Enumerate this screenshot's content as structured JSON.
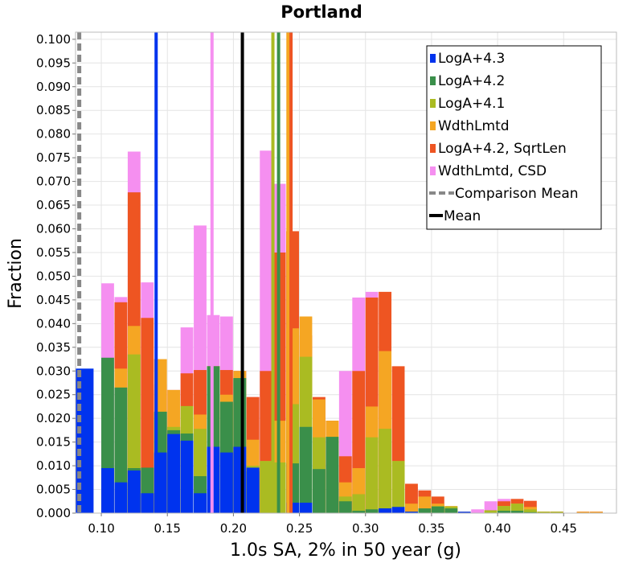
{
  "chart_data": {
    "type": "bar",
    "stacked": true,
    "title": "Portland",
    "xlabel": "1.0s SA, 2% in 50 year (g)",
    "ylabel": "Fraction",
    "xlim": [
      0.0805,
      0.49
    ],
    "ylim": [
      0,
      0.1015
    ],
    "bin_width": 0.01,
    "x_ticks": [
      "0.10",
      "0.15",
      "0.20",
      "0.25",
      "0.30",
      "0.35",
      "0.40",
      "0.45"
    ],
    "x_tick_values": [
      0.1,
      0.15,
      0.2,
      0.25,
      0.3,
      0.35,
      0.4,
      0.45
    ],
    "y_ticks": [
      "0.000",
      "0.005",
      "0.010",
      "0.015",
      "0.020",
      "0.025",
      "0.030",
      "0.035",
      "0.040",
      "0.045",
      "0.050",
      "0.055",
      "0.060",
      "0.065",
      "0.070",
      "0.075",
      "0.080",
      "0.085",
      "0.090",
      "0.095",
      "0.100"
    ],
    "y_tick_values": [
      0,
      0.005,
      0.01,
      0.015,
      0.02,
      0.025,
      0.03,
      0.035,
      0.04,
      0.045,
      0.05,
      0.055,
      0.06,
      0.065,
      0.07,
      0.075,
      0.08,
      0.085,
      0.09,
      0.095,
      0.1
    ],
    "grid": true,
    "legend_position": "top-right",
    "series": [
      {
        "name": "LogA+4.3",
        "color": "#0033ee",
        "bins": [
          [
            0.0805,
            0.0305
          ],
          [
            0.095,
            0.0
          ],
          [
            0.1,
            0.0095
          ],
          [
            0.11,
            0.0065
          ],
          [
            0.12,
            0.009
          ],
          [
            0.13,
            0.0042
          ],
          [
            0.14,
            0.0128
          ],
          [
            0.15,
            0.0167
          ],
          [
            0.16,
            0.0153
          ],
          [
            0.17,
            0.0042
          ],
          [
            0.18,
            0.014
          ],
          [
            0.19,
            0.0128
          ],
          [
            0.2,
            0.014
          ],
          [
            0.21,
            0.0096
          ],
          [
            0.22,
            0.0
          ],
          [
            0.23,
            0.0
          ],
          [
            0.24,
            0.0022
          ],
          [
            0.25,
            0.0022
          ],
          [
            0.31,
            0.001
          ],
          [
            0.32,
            0.0013
          ],
          [
            0.33,
            0.0003
          ],
          [
            0.34,
            0.0
          ],
          [
            0.37,
            0.0003
          ]
        ]
      },
      {
        "name": "LogA+4.2",
        "color": "#3a8f4a",
        "bins": [
          [
            0.1,
            0.0328
          ],
          [
            0.11,
            0.0265
          ],
          [
            0.12,
            0.0095
          ],
          [
            0.13,
            0.0096
          ],
          [
            0.14,
            0.0214
          ],
          [
            0.15,
            0.0175
          ],
          [
            0.16,
            0.0168
          ],
          [
            0.17,
            0.0078
          ],
          [
            0.18,
            0.031
          ],
          [
            0.19,
            0.0235
          ],
          [
            0.2,
            0.0285
          ],
          [
            0.21,
            0.0088
          ],
          [
            0.22,
            0.0
          ],
          [
            0.23,
            0.0
          ],
          [
            0.24,
            0.0105
          ],
          [
            0.25,
            0.0182
          ],
          [
            0.26,
            0.0093
          ],
          [
            0.27,
            0.0161
          ],
          [
            0.28,
            0.0025
          ],
          [
            0.29,
            0.0005
          ],
          [
            0.3,
            0.0008
          ],
          [
            0.31,
            0.001
          ],
          [
            0.32,
            0.0013
          ],
          [
            0.33,
            0.0003
          ],
          [
            0.34,
            0.001
          ],
          [
            0.35,
            0.0014
          ],
          [
            0.36,
            0.001
          ],
          [
            0.4,
            0.0005
          ],
          [
            0.41,
            0.0005
          ],
          [
            0.42,
            0.0002
          ]
        ]
      },
      {
        "name": "LogA+4.1",
        "color": "#aabb22",
        "bins": [
          [
            0.11,
            0.0265
          ],
          [
            0.12,
            0.0335
          ],
          [
            0.13,
            0.0
          ],
          [
            0.14,
            0.0214
          ],
          [
            0.15,
            0.0182
          ],
          [
            0.16,
            0.0226
          ],
          [
            0.17,
            0.0178
          ],
          [
            0.18,
            0.031
          ],
          [
            0.19,
            0.0235
          ],
          [
            0.2,
            0.0285
          ],
          [
            0.21,
            0.01
          ],
          [
            0.22,
            0.011
          ],
          [
            0.23,
            0.0107
          ],
          [
            0.24,
            0.023
          ],
          [
            0.25,
            0.033
          ],
          [
            0.26,
            0.016
          ],
          [
            0.27,
            0.0161
          ],
          [
            0.28,
            0.0035
          ],
          [
            0.29,
            0.004
          ],
          [
            0.3,
            0.016
          ],
          [
            0.31,
            0.0178
          ],
          [
            0.32,
            0.011
          ],
          [
            0.33,
            0.0
          ],
          [
            0.34,
            0.0
          ],
          [
            0.35,
            0.0015
          ],
          [
            0.36,
            0.0014
          ],
          [
            0.39,
            0.0006
          ],
          [
            0.4,
            0.0015
          ],
          [
            0.41,
            0.002
          ],
          [
            0.42,
            0.0008
          ],
          [
            0.43,
            0.0003
          ],
          [
            0.44,
            0.0003
          ]
        ]
      },
      {
        "name": "WdthLmtd",
        "color": "#f5a623",
        "bins": [
          [
            0.11,
            0.0305
          ],
          [
            0.12,
            0.0395
          ],
          [
            0.13,
            0.0
          ],
          [
            0.14,
            0.0325
          ],
          [
            0.15,
            0.026
          ],
          [
            0.16,
            0.0225
          ],
          [
            0.17,
            0.0208
          ],
          [
            0.18,
            0.03
          ],
          [
            0.19,
            0.025
          ],
          [
            0.2,
            0.03
          ],
          [
            0.21,
            0.0155
          ],
          [
            0.22,
            0.011
          ],
          [
            0.23,
            0.0195
          ],
          [
            0.24,
            0.039
          ],
          [
            0.25,
            0.0415
          ],
          [
            0.26,
            0.024
          ],
          [
            0.27,
            0.0195
          ],
          [
            0.28,
            0.0065
          ],
          [
            0.29,
            0.0095
          ],
          [
            0.3,
            0.0225
          ],
          [
            0.31,
            0.0342
          ],
          [
            0.32,
            0.011
          ],
          [
            0.33,
            0.002
          ],
          [
            0.34,
            0.0035
          ],
          [
            0.35,
            0.002
          ],
          [
            0.36,
            0.0015
          ],
          [
            0.37,
            0.0003
          ],
          [
            0.4,
            0.0015
          ],
          [
            0.41,
            0.002
          ],
          [
            0.42,
            0.0013
          ],
          [
            0.43,
            0.0003
          ],
          [
            0.44,
            0.0003
          ],
          [
            0.46,
            0.0003
          ],
          [
            0.47,
            0.0003
          ]
        ]
      },
      {
        "name": "LogA+4.2, SqrtLen",
        "color": "#ee5522",
        "bins": [
          [
            0.11,
            0.0445
          ],
          [
            0.12,
            0.0677
          ],
          [
            0.13,
            0.0412
          ],
          [
            0.14,
            0.026
          ],
          [
            0.15,
            0.0182
          ],
          [
            0.16,
            0.0295
          ],
          [
            0.17,
            0.0302
          ],
          [
            0.18,
            0.031
          ],
          [
            0.19,
            0.0302
          ],
          [
            0.2,
            0.03
          ],
          [
            0.21,
            0.0245
          ],
          [
            0.22,
            0.03
          ],
          [
            0.23,
            0.055
          ],
          [
            0.24,
            0.0595
          ],
          [
            0.25,
            0.0375
          ],
          [
            0.26,
            0.0245
          ],
          [
            0.27,
            0.0195
          ],
          [
            0.28,
            0.012
          ],
          [
            0.29,
            0.03
          ],
          [
            0.3,
            0.0455
          ],
          [
            0.31,
            0.0467
          ],
          [
            0.32,
            0.031
          ],
          [
            0.33,
            0.0062
          ],
          [
            0.34,
            0.0048
          ],
          [
            0.35,
            0.0035
          ],
          [
            0.36,
            0.0014
          ],
          [
            0.39,
            0.0006
          ],
          [
            0.4,
            0.0025
          ],
          [
            0.41,
            0.003
          ],
          [
            0.42,
            0.0026
          ],
          [
            0.43,
            0.0003
          ],
          [
            0.44,
            0.0003
          ],
          [
            0.46,
            0.0003
          ],
          [
            0.47,
            0.0003
          ]
        ]
      },
      {
        "name": "WdthLmtd, CSD",
        "color": "#f58ff0",
        "bins": [
          [
            0.1,
            0.0485
          ],
          [
            0.11,
            0.0456
          ],
          [
            0.12,
            0.0763
          ],
          [
            0.13,
            0.0487
          ],
          [
            0.14,
            0.0272
          ],
          [
            0.15,
            0.026
          ],
          [
            0.16,
            0.0392
          ],
          [
            0.17,
            0.0607
          ],
          [
            0.18,
            0.0418
          ],
          [
            0.19,
            0.0415
          ],
          [
            0.2,
            0.03
          ],
          [
            0.21,
            0.0245
          ],
          [
            0.22,
            0.0765
          ],
          [
            0.23,
            0.0695
          ],
          [
            0.24,
            0.0567
          ],
          [
            0.25,
            0.0255
          ],
          [
            0.26,
            0.0065
          ],
          [
            0.27,
            0.0105
          ],
          [
            0.28,
            0.03
          ],
          [
            0.29,
            0.0455
          ],
          [
            0.3,
            0.0467
          ],
          [
            0.31,
            0.031
          ],
          [
            0.32,
            0.0062
          ],
          [
            0.33,
            0.0055
          ],
          [
            0.34,
            0.0035
          ],
          [
            0.35,
            0.0018
          ],
          [
            0.38,
            0.0008
          ],
          [
            0.39,
            0.0025
          ],
          [
            0.4,
            0.003
          ],
          [
            0.41,
            0.0026
          ],
          [
            0.44,
            0.0003
          ],
          [
            0.46,
            0.0003
          ],
          [
            0.47,
            0.0003
          ]
        ]
      }
    ],
    "vertical_lines": [
      {
        "series": "LogA+4.3",
        "x": 0.1415,
        "color": "#0033ee",
        "style": "solid"
      },
      {
        "series": "WdthLmtd, CSD",
        "x": 0.1838,
        "color": "#f58ff0",
        "style": "solid"
      },
      {
        "series": "Mean",
        "x": 0.2068,
        "color": "#000000",
        "style": "solid"
      },
      {
        "series": "LogA+4.1",
        "x": 0.2299,
        "color": "#aabb22",
        "style": "solid"
      },
      {
        "series": "LogA+4.2",
        "x": 0.2342,
        "color": "#3a8f4a",
        "style": "solid"
      },
      {
        "series": "WdthLmtd",
        "x": 0.2413,
        "color": "#f5a623",
        "style": "solid"
      },
      {
        "series": "LogA+4.2, SqrtLen",
        "x": 0.2436,
        "color": "#ee5522",
        "style": "solid"
      },
      {
        "series": "Comparison Mean",
        "x": 0.0833,
        "color": "#888888",
        "style": "dashed"
      }
    ],
    "legend": [
      {
        "label": "LogA+4.3",
        "color": "#0033ee",
        "kind": "box"
      },
      {
        "label": "LogA+4.2",
        "color": "#3a8f4a",
        "kind": "box"
      },
      {
        "label": "LogA+4.1",
        "color": "#aabb22",
        "kind": "box"
      },
      {
        "label": "WdthLmtd",
        "color": "#f5a623",
        "kind": "box"
      },
      {
        "label": "LogA+4.2, SqrtLen",
        "color": "#ee5522",
        "kind": "box"
      },
      {
        "label": "WdthLmtd, CSD",
        "color": "#f58ff0",
        "kind": "box"
      },
      {
        "label": "Comparison Mean",
        "color": "#888888",
        "kind": "dashed"
      },
      {
        "label": "Mean",
        "color": "#000000",
        "kind": "line"
      }
    ]
  }
}
